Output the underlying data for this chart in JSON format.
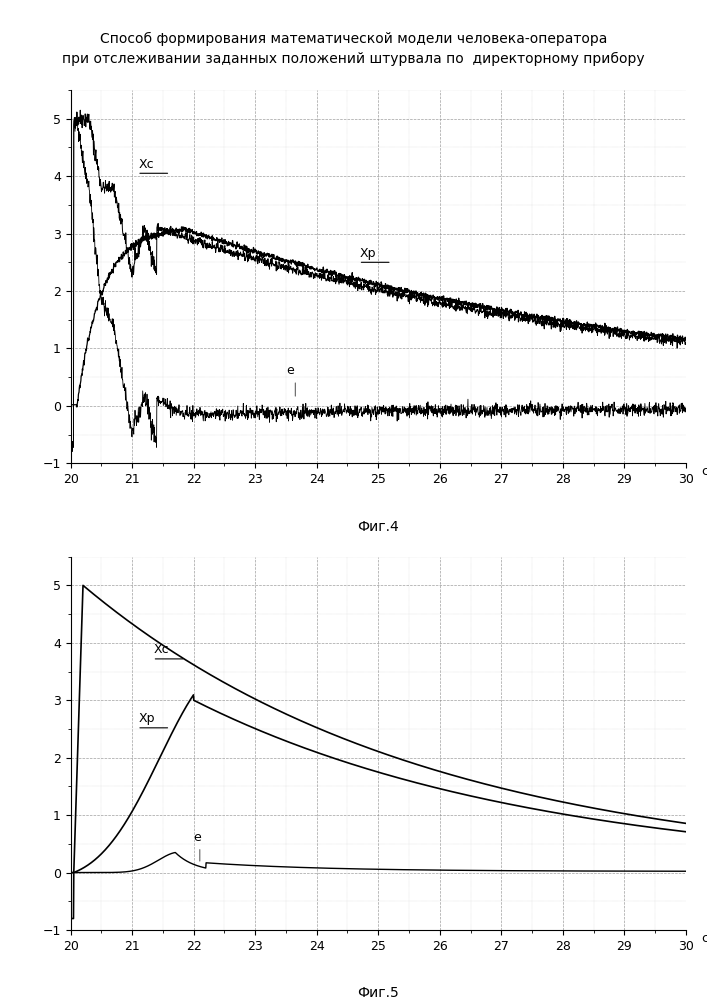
{
  "title_line1": "Способ формирования математической модели человека-оператора",
  "title_line2": "при отслеживании заданных положений штурвала по  директорному прибору",
  "fig4_caption": "Фиг.4",
  "fig5_caption": "Фиг.5",
  "xlim": [
    20,
    30
  ],
  "ylim": [
    -1,
    5.5
  ],
  "xticks": [
    20,
    21,
    22,
    23,
    24,
    25,
    26,
    27,
    28,
    29,
    30
  ],
  "yticks": [
    -1,
    0,
    1,
    2,
    3,
    4,
    5
  ],
  "xlabel_unit": "с",
  "line_color": "#000000",
  "grid_color": "#888888",
  "background_color": "#ffffff"
}
